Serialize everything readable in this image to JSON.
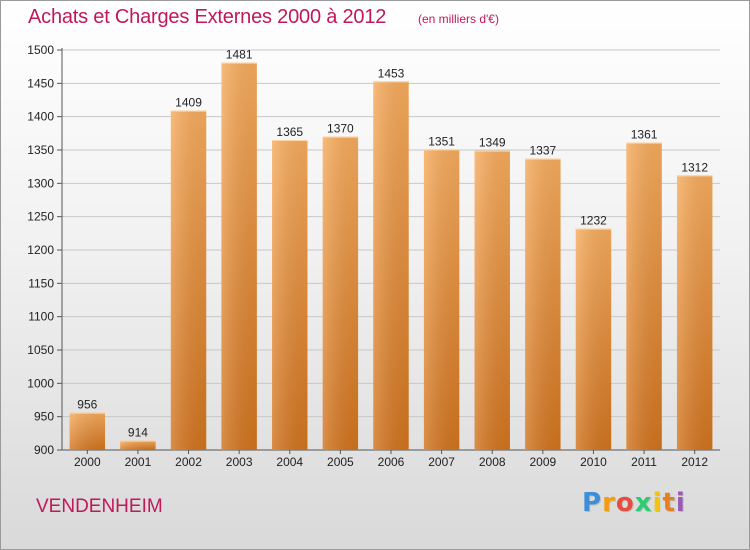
{
  "header": {
    "title": "Achats et Charges Externes 2000 à 2012",
    "subtitle": "(en milliers d'€)"
  },
  "footer": {
    "commune": "VENDENHEIM",
    "logo_letters": [
      "P",
      "r",
      "o",
      "x",
      "i",
      "t",
      "i"
    ],
    "logo_colors": [
      "#3a8fd8",
      "#f39c12",
      "#e74c3c",
      "#2ecc71",
      "#f1c40f",
      "#e67e22",
      "#9b59b6"
    ]
  },
  "colors": {
    "bar_light": "#f7ac5e",
    "bar_dark": "#d2741e",
    "title": "#c2185b"
  },
  "chart_data": {
    "type": "bar",
    "title": "Achats et Charges Externes 2000 à 2012",
    "subtitle": "(en milliers d'€)",
    "categories": [
      "2000",
      "2001",
      "2002",
      "2003",
      "2004",
      "2005",
      "2006",
      "2007",
      "2008",
      "2009",
      "2010",
      "2011",
      "2012"
    ],
    "values": [
      956,
      914,
      1409,
      1481,
      1365,
      1370,
      1453,
      1351,
      1349,
      1337,
      1232,
      1361,
      1312
    ],
    "ylim": [
      900,
      1500
    ],
    "yticks": [
      900,
      950,
      1000,
      1050,
      1100,
      1150,
      1200,
      1250,
      1300,
      1350,
      1400,
      1450,
      1500
    ],
    "grid": true,
    "xlabel": "",
    "ylabel": ""
  }
}
